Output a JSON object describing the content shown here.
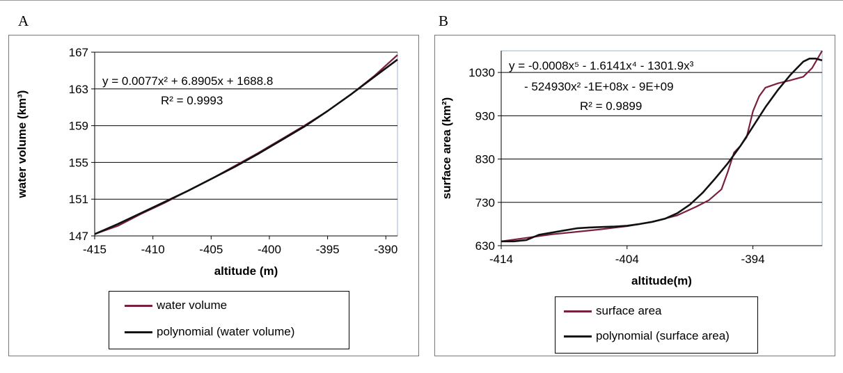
{
  "panels": {
    "a_letter": "A",
    "b_letter": "B"
  },
  "chart_data": [
    {
      "type": "line",
      "xlabel": "altitude (m)",
      "ylabel": "water volume (km³)",
      "xlim": [
        -415,
        -389
      ],
      "ylim": [
        147,
        167
      ],
      "xticks": [
        "-415",
        "-410",
        "-405",
        "-400",
        "-395",
        "-390"
      ],
      "yticks": [
        "147",
        "151",
        "155",
        "159",
        "163",
        "167"
      ],
      "grid": "horizontal",
      "legend_position": "bottom",
      "annotation": {
        "equation": "y = 0.0077x² + 6.8905x + 1688.8",
        "r2": "R² = 0.9993"
      },
      "series": [
        {
          "name": "water volume",
          "color": "#7a1f3d",
          "x": [
            -415,
            -413,
            -411,
            -409,
            -407,
            -405,
            -403,
            -401,
            -399,
            -397,
            -395,
            -393,
            -391,
            -389
          ],
          "y": [
            147.2,
            148.1,
            149.4,
            150.6,
            151.9,
            153.2,
            154.6,
            156.0,
            157.5,
            159.0,
            160.6,
            162.4,
            164.4,
            166.7
          ]
        },
        {
          "name": "polynomial (water volume)",
          "color": "#111111",
          "x": [
            -415,
            -413,
            -411,
            -409,
            -407,
            -405,
            -403,
            -401,
            -399,
            -397,
            -395,
            -393,
            -391,
            -389
          ],
          "y": [
            147.2,
            148.3,
            149.5,
            150.7,
            151.9,
            153.2,
            154.5,
            155.9,
            157.4,
            158.9,
            160.6,
            162.4,
            164.3,
            166.2
          ]
        }
      ]
    },
    {
      "type": "line",
      "xlabel": "altitude(m)",
      "ylabel": "surface area (km²)",
      "xlim": [
        -414,
        -388.5
      ],
      "ylim": [
        630,
        1080
      ],
      "xticks": [
        "-414",
        "-404",
        "-394"
      ],
      "yticks": [
        "630",
        "730",
        "830",
        "930",
        "1030"
      ],
      "grid": "horizontal",
      "legend_position": "bottom",
      "annotation": {
        "line1": "y = -0.0008x⁵ - 1.6141x⁴ - 1301.9x³",
        "line2": "- 524930x² -1E+08x - 9E+09",
        "r2": "R² = 0.9899"
      },
      "series": [
        {
          "name": "surface area",
          "color": "#7a1f3d",
          "x": [
            -414,
            -412,
            -410,
            -408,
            -406,
            -404,
            -402,
            -400,
            -398.5,
            -397.5,
            -396.5,
            -396,
            -395.5,
            -395,
            -394.5,
            -394,
            -393.5,
            -393,
            -392,
            -391,
            -390,
            -389.3,
            -388.5
          ],
          "y": [
            640,
            648,
            656,
            662,
            668,
            675,
            685,
            700,
            720,
            735,
            760,
            800,
            845,
            860,
            880,
            940,
            975,
            995,
            1005,
            1012,
            1020,
            1040,
            1080
          ]
        },
        {
          "name": "polynomial (surface area)",
          "color": "#111111",
          "x": [
            -414,
            -413,
            -412,
            -411,
            -410,
            -409,
            -408,
            -407,
            -406,
            -405,
            -404,
            -403,
            -402,
            -401,
            -400,
            -399,
            -398,
            -397,
            -396,
            -395,
            -394,
            -393,
            -392,
            -391,
            -390,
            -389.5,
            -389,
            -388.5
          ],
          "y": [
            640,
            640,
            643,
            655,
            660,
            665,
            670,
            672,
            673,
            674,
            676,
            680,
            685,
            692,
            705,
            725,
            752,
            785,
            820,
            860,
            905,
            950,
            990,
            1025,
            1055,
            1062,
            1062,
            1058
          ]
        }
      ]
    }
  ]
}
